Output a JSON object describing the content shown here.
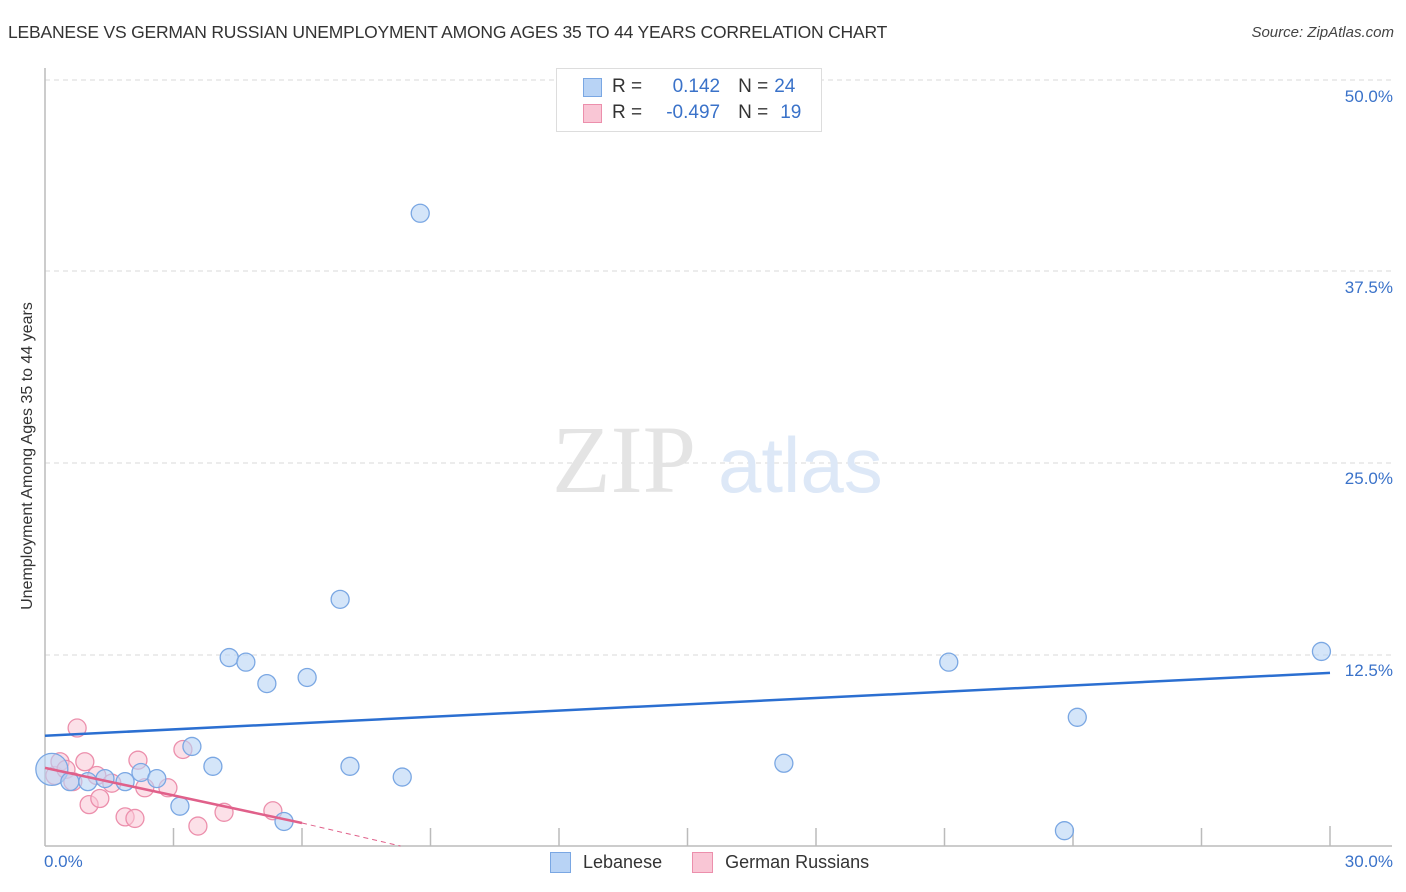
{
  "title": "LEBANESE VS GERMAN RUSSIAN UNEMPLOYMENT AMONG AGES 35 TO 44 YEARS CORRELATION CHART",
  "source": "Source: ZipAtlas.com",
  "watermark": {
    "zip": "ZIP",
    "atlas": "atlas"
  },
  "stats": {
    "lebanese": {
      "r_label": "R =",
      "r_value": "0.142",
      "n_label": "N =",
      "n_value": "24"
    },
    "german_russians": {
      "r_label": "R =",
      "r_value": "-0.497",
      "n_label": "N =",
      "n_value": "19"
    }
  },
  "axis": {
    "y_label": "Unemployment Among Ages 35 to 44 years",
    "y_ticks": [
      "50.0%",
      "37.5%",
      "25.0%",
      "12.5%"
    ],
    "x_min_label": "0.0%",
    "x_max_label": "30.0%"
  },
  "legend": [
    {
      "label": "Lebanese",
      "color": "#b8d3f5",
      "border": "#7aa7e3"
    },
    {
      "label": "German Russians",
      "color": "#f9c6d5",
      "border": "#ec8fac"
    }
  ],
  "colors": {
    "blue": "#3a72c9",
    "blue_line": "#2b6fd1",
    "pink_line": "#e0608a"
  },
  "chart_data": {
    "type": "scatter",
    "title": "LEBANESE VS GERMAN RUSSIAN UNEMPLOYMENT AMONG AGES 35 TO 44 YEARS CORRELATION CHART",
    "xlabel": "",
    "ylabel": "Unemployment Among Ages 35 to 44 years",
    "xlim": [
      0,
      30
    ],
    "ylim": [
      0,
      50
    ],
    "y_ticks": [
      12.5,
      25.0,
      37.5,
      50.0
    ],
    "grid": true,
    "legend_position": "bottom",
    "series": [
      {
        "name": "Lebanese",
        "r": 0.142,
        "n": 24,
        "points": [
          [
            0.16,
            5.0
          ],
          [
            0.58,
            4.2
          ],
          [
            1.0,
            4.2
          ],
          [
            1.4,
            4.4
          ],
          [
            1.87,
            4.2
          ],
          [
            2.24,
            4.8
          ],
          [
            2.61,
            4.4
          ],
          [
            3.15,
            2.6
          ],
          [
            3.43,
            6.5
          ],
          [
            3.92,
            5.2
          ],
          [
            4.3,
            12.3
          ],
          [
            4.69,
            12.0
          ],
          [
            5.18,
            10.6
          ],
          [
            5.58,
            1.6
          ],
          [
            6.12,
            11.0
          ],
          [
            6.89,
            16.1
          ],
          [
            7.12,
            5.2
          ],
          [
            8.34,
            4.5
          ],
          [
            8.76,
            41.3
          ],
          [
            17.25,
            5.4
          ],
          [
            21.1,
            12.0
          ],
          [
            23.8,
            1.0
          ],
          [
            24.1,
            8.4
          ],
          [
            29.8,
            12.7
          ]
        ],
        "trend": {
          "x": [
            0,
            30
          ],
          "y": [
            7.2,
            11.3
          ]
        }
      },
      {
        "name": "German Russians",
        "r": -0.497,
        "n": 19,
        "points": [
          [
            0.23,
            4.6
          ],
          [
            0.35,
            5.5
          ],
          [
            0.49,
            5.0
          ],
          [
            0.65,
            4.2
          ],
          [
            0.75,
            7.7
          ],
          [
            0.93,
            5.5
          ],
          [
            1.03,
            2.7
          ],
          [
            1.21,
            4.6
          ],
          [
            1.28,
            3.1
          ],
          [
            1.56,
            4.1
          ],
          [
            1.87,
            1.9
          ],
          [
            2.1,
            1.8
          ],
          [
            2.17,
            5.6
          ],
          [
            2.33,
            3.8
          ],
          [
            2.87,
            3.8
          ],
          [
            3.22,
            6.3
          ],
          [
            3.57,
            1.3
          ],
          [
            4.18,
            2.2
          ],
          [
            5.32,
            2.3
          ]
        ],
        "trend": {
          "x": [
            0,
            6.0
          ],
          "y": [
            5.1,
            1.5
          ],
          "dashed_extension": {
            "x": [
              6.0,
              8.3
            ],
            "y": [
              1.5,
              0.0
            ]
          }
        }
      }
    ]
  }
}
